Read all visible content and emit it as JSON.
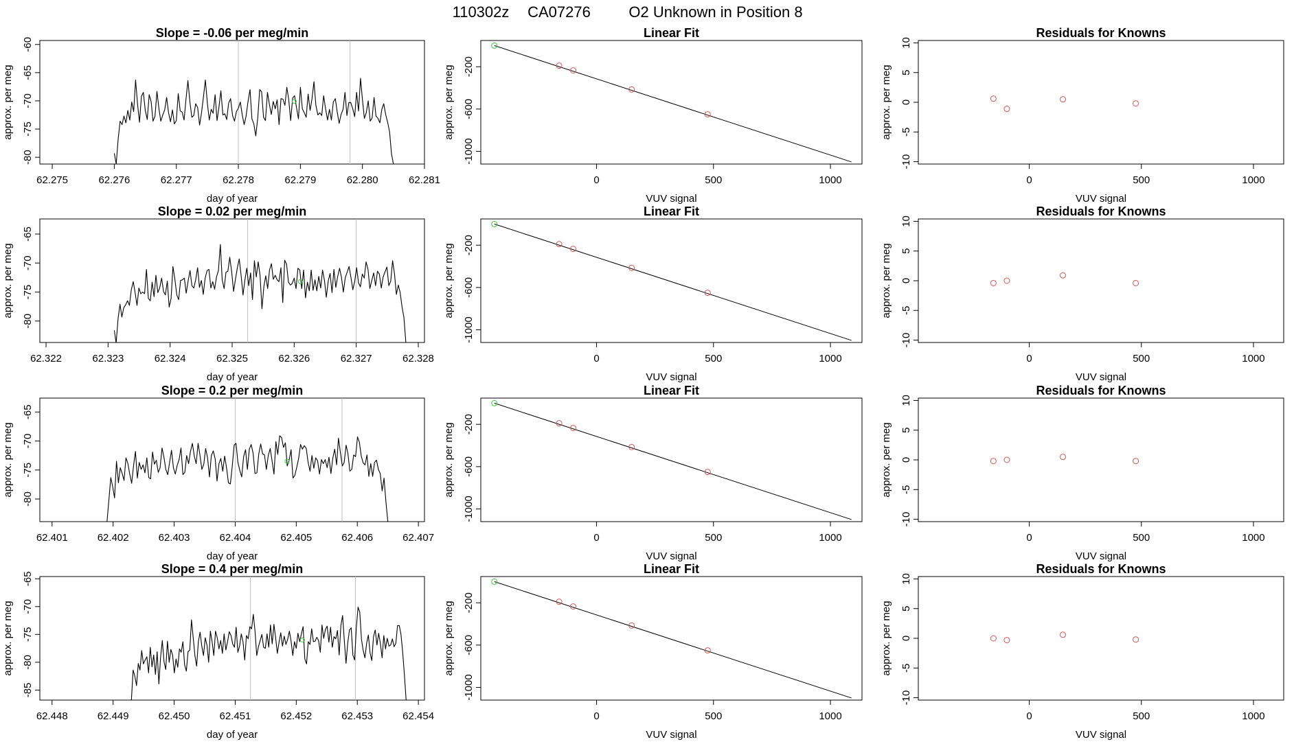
{
  "figure": {
    "title_parts": [
      "110302z",
      "CA07276",
      "O2 Unknown in Position  8"
    ]
  },
  "colors": {
    "axis": "#000000",
    "line": "#000000",
    "grid_marker": "#bebebe",
    "known_point": "#d9534f",
    "unknown_point": "#33cc33"
  },
  "chart_data": [
    {
      "type": "line",
      "panel": "trace",
      "row": 1,
      "title": "Slope =  -0.06  per meg/min",
      "xlabel": "day of year",
      "ylabel": "approx. per meg",
      "xlim": [
        62.2748,
        62.281
      ],
      "ylim": [
        -81.2,
        -59.3
      ],
      "xticks": [
        "62.275",
        "62.276",
        "62.277",
        "62.278",
        "62.279",
        "62.280",
        "62.281"
      ],
      "yticks": [
        "-60",
        "-65",
        "-70",
        "-75",
        "-80"
      ],
      "vlines": [
        62.278,
        62.2798
      ],
      "start_x": 62.276,
      "end_x": 62.2805,
      "y": [
        -79.3,
        -81.2,
        -76.8,
        -73.6,
        -74.2,
        -72.7,
        -73.9,
        -71.7,
        -73.4,
        -70.2,
        -71.9,
        -66.3,
        -70.6,
        -73.8,
        -69.2,
        -68.5,
        -71.7,
        -73.3,
        -68.9,
        -70.1,
        -73.6,
        -72.7,
        -68.3,
        -71.3,
        -73.6,
        -72.5,
        -71.6,
        -69.4,
        -72.1,
        -73.7,
        -71.6,
        -74.1,
        -73.5,
        -68.7,
        -71.8,
        -72.0,
        -73.4,
        -69.7,
        -66.4,
        -70.2,
        -72.9,
        -72.6,
        -70.5,
        -71.2,
        -74.3,
        -72.1,
        -69.3,
        -66.3,
        -70.4,
        -73.4,
        -71.5,
        -72.2,
        -68.9,
        -73.5,
        -71.1,
        -68.2,
        -72.5,
        -72.3,
        -73.3,
        -70.4,
        -69.6,
        -72.6,
        -73.6,
        -71.9,
        -71.3,
        -70.2,
        -72.5,
        -74.2,
        -72.7,
        -70.1,
        -68.0,
        -73.2,
        -74.1,
        -76.2,
        -73.0,
        -68.0,
        -68.4,
        -72.9,
        -73.5,
        -68.5,
        -70.6,
        -72.4,
        -70.1,
        -71.4,
        -69.8,
        -74.2,
        -69.6,
        -69.7,
        -70.8,
        -67.6,
        -69.8,
        -73.5,
        -69.5,
        -69.1,
        -71.2,
        -73.2,
        -67.6,
        -71.4,
        -72.1,
        -72.9,
        -68.8,
        -71.7,
        -69.6,
        -66.6,
        -70.8,
        -72.5,
        -72.1,
        -72.6,
        -69.1,
        -71.4,
        -73.4,
        -71.5,
        -73.4,
        -70.2,
        -69.6,
        -72.0,
        -74.0,
        -72.4,
        -71.5,
        -68.5,
        -72.6,
        -70.3,
        -70.3,
        -71.4,
        -72.8,
        -68.5,
        -71.8,
        -66.0,
        -69.8,
        -73.1,
        -72.1,
        -70.0,
        -73.6,
        -73.0,
        -69.4,
        -72.7,
        -73.1,
        -73.9,
        -71.5,
        -70.5,
        -72.4,
        -73.8,
        -75.5,
        -79.4,
        -81.2
      ],
      "unknown_point": [
        62.2789,
        -70.1
      ]
    },
    {
      "type": "scatter",
      "panel": "fit",
      "row": 1,
      "title": "Linear Fit",
      "xlabel": "VUV signal",
      "ylabel": "approx. per meg",
      "xlim": [
        -495,
        1135
      ],
      "ylim": [
        -1120,
        48
      ],
      "xticks": [
        0,
        500,
        1000
      ],
      "yticks": [
        -200,
        -600,
        -1000
      ],
      "fit_line": [
        [
          -437,
          0
        ],
        [
          1090,
          -1100
        ]
      ],
      "known_points": [
        [
          -160,
          -190
        ],
        [
          -100,
          -235
        ],
        [
          150,
          -415
        ],
        [
          475,
          -650
        ]
      ],
      "unknown_point": [
        -437,
        0
      ]
    },
    {
      "type": "scatter",
      "panel": "residuals",
      "row": 1,
      "title": "Residuals for Knowns",
      "xlabel": "VUV signal",
      "ylabel": "approx. per meg",
      "xlim": [
        -495,
        1135
      ],
      "ylim": [
        -10.4,
        10.4
      ],
      "xticks": [
        0,
        500,
        1000
      ],
      "yticks": [
        10,
        5,
        0,
        -5,
        -10
      ],
      "points": [
        [
          -160,
          0.6
        ],
        [
          -100,
          -1.1
        ],
        [
          150,
          0.5
        ],
        [
          475,
          -0.2
        ]
      ]
    },
    {
      "type": "line",
      "panel": "trace",
      "row": 2,
      "title": "Slope =  0.02  per meg/min",
      "xlabel": "day of year",
      "ylabel": "approx. per meg",
      "xlim": [
        62.3219,
        62.3281
      ],
      "ylim": [
        -83.7,
        -62.4
      ],
      "xticks": [
        "62.322",
        "62.323",
        "62.324",
        "62.325",
        "62.326",
        "62.327",
        "62.328"
      ],
      "yticks": [
        "-65",
        "-70",
        "-75",
        "-80"
      ],
      "vlines": [
        62.32525,
        62.327
      ],
      "start_x": 62.3231,
      "end_x": 62.3278,
      "y": [
        -81.6,
        -83.8,
        -79.6,
        -77.1,
        -79.3,
        -77.7,
        -77.2,
        -76.5,
        -77.3,
        -74.6,
        -73.2,
        -75.1,
        -77.3,
        -74.3,
        -75.3,
        -75.0,
        -75.3,
        -71.1,
        -76.1,
        -76.5,
        -73.3,
        -75.8,
        -72.1,
        -75.1,
        -74.3,
        -72.6,
        -74.9,
        -75.5,
        -73.1,
        -77.6,
        -76.1,
        -70.6,
        -72.8,
        -75.5,
        -76.3,
        -73.0,
        -72.9,
        -72.6,
        -75.2,
        -73.1,
        -71.3,
        -73.9,
        -74.3,
        -72.9,
        -70.8,
        -74.2,
        -73.0,
        -75.4,
        -72.6,
        -71.3,
        -71.1,
        -74.3,
        -73.2,
        -74.5,
        -72.4,
        -71.3,
        -66.8,
        -72.9,
        -74.4,
        -71.6,
        -71.4,
        -69.0,
        -71.5,
        -74.9,
        -72.8,
        -70.8,
        -69.3,
        -72.2,
        -75.5,
        -72.9,
        -70.9,
        -73.9,
        -71.7,
        -76.3,
        -69.6,
        -72.4,
        -69.8,
        -72.1,
        -77.9,
        -74.0,
        -72.2,
        -74.4,
        -71.2,
        -70.1,
        -72.8,
        -72.1,
        -72.9,
        -73.2,
        -70.8,
        -76.8,
        -69.5,
        -70.2,
        -73.3,
        -73.8,
        -73.5,
        -72.6,
        -74.4,
        -70.9,
        -71.2,
        -74.4,
        -71.2,
        -76.0,
        -73.3,
        -74.8,
        -71.2,
        -74.7,
        -72.9,
        -74.8,
        -72.3,
        -74.3,
        -71.2,
        -73.0,
        -75.9,
        -73.1,
        -71.8,
        -75.1,
        -71.1,
        -74.2,
        -72.3,
        -70.9,
        -72.5,
        -75.0,
        -72.5,
        -71.6,
        -70.6,
        -72.5,
        -74.6,
        -73.1,
        -70.8,
        -73.4,
        -74.1,
        -71.9,
        -72.6,
        -69.8,
        -71.1,
        -74.4,
        -73.0,
        -71.7,
        -73.9,
        -71.4,
        -71.9,
        -74.3,
        -72.4,
        -71.5,
        -70.7,
        -73.9,
        -73.1,
        -69.6,
        -71.9,
        -75.4,
        -73.8,
        -75.1,
        -77.6,
        -79.4,
        -83.7
      ],
      "unknown_point": [
        62.3261,
        -73.2
      ]
    },
    {
      "type": "scatter",
      "panel": "fit",
      "row": 2,
      "title": "Linear Fit",
      "xlabel": "VUV signal",
      "ylabel": "approx. per meg",
      "xlim": [
        -495,
        1135
      ],
      "ylim": [
        -1120,
        48
      ],
      "xticks": [
        0,
        500,
        1000
      ],
      "yticks": [
        -200,
        -600,
        -1000
      ],
      "fit_line": [
        [
          -437,
          0
        ],
        [
          1090,
          -1100
        ]
      ],
      "known_points": [
        [
          -160,
          -190
        ],
        [
          -100,
          -235
        ],
        [
          150,
          -415
        ],
        [
          475,
          -650
        ]
      ],
      "unknown_point": [
        -437,
        0
      ]
    },
    {
      "type": "scatter",
      "panel": "residuals",
      "row": 2,
      "title": "Residuals for Knowns",
      "xlabel": "VUV signal",
      "ylabel": "approx. per meg",
      "xlim": [
        -495,
        1135
      ],
      "ylim": [
        -10.4,
        10.4
      ],
      "xticks": [
        0,
        500,
        1000
      ],
      "yticks": [
        10,
        5,
        0,
        -5,
        -10
      ],
      "points": [
        [
          -160,
          -0.4
        ],
        [
          -100,
          0.0
        ],
        [
          150,
          0.9
        ],
        [
          475,
          -0.4
        ]
      ]
    },
    {
      "type": "line",
      "panel": "trace",
      "row": 3,
      "title": "Slope =  0.2  per meg/min",
      "xlabel": "day of year",
      "ylabel": "approx. per meg",
      "xlim": [
        62.4008,
        62.4071
      ],
      "ylim": [
        -83.9,
        -62.6
      ],
      "xticks": [
        "62.401",
        "62.402",
        "62.403",
        "62.404",
        "62.405",
        "62.406",
        "62.407"
      ],
      "yticks": [
        "-65",
        "-70",
        "-75",
        "-80"
      ],
      "vlines": [
        62.404,
        62.40575
      ],
      "start_x": 62.4019,
      "end_x": 62.4065,
      "y": [
        -83.9,
        -80.2,
        -76.3,
        -77.9,
        -79.8,
        -73.5,
        -77.2,
        -74.6,
        -75.6,
        -76.8,
        -72.9,
        -73.9,
        -75.7,
        -77.3,
        -74.2,
        -71.8,
        -76.4,
        -73.7,
        -74.9,
        -74.1,
        -75.5,
        -72.9,
        -76.3,
        -76.5,
        -71.9,
        -74.0,
        -73.3,
        -75.4,
        -74.6,
        -71.2,
        -72.8,
        -74.9,
        -75.8,
        -73.7,
        -71.6,
        -74.6,
        -75.7,
        -74.2,
        -73.2,
        -71.2,
        -75.8,
        -75.4,
        -72.5,
        -73.9,
        -71.8,
        -70.4,
        -72.6,
        -73.9,
        -70.4,
        -72.5,
        -74.9,
        -74.0,
        -71.3,
        -72.9,
        -76.2,
        -72.5,
        -71.7,
        -73.1,
        -76.9,
        -73.9,
        -73.0,
        -75.2,
        -72.6,
        -74.6,
        -77.2,
        -77.4,
        -74.4,
        -70.7,
        -70.4,
        -73.7,
        -75.1,
        -76.2,
        -72.7,
        -71.5,
        -74.9,
        -71.4,
        -70.6,
        -72.1,
        -75.6,
        -75.5,
        -72.2,
        -70.5,
        -72.2,
        -72.4,
        -74.9,
        -72.5,
        -71.3,
        -73.4,
        -75.7,
        -70.1,
        -72.3,
        -69.1,
        -69.4,
        -71.1,
        -70.3,
        -74.3,
        -73.3,
        -71.5,
        -76.4,
        -75.9,
        -74.5,
        -73.0,
        -70.6,
        -71.4,
        -70.8,
        -71.3,
        -73.7,
        -75.2,
        -72.5,
        -74.7,
        -72.9,
        -73.4,
        -75.7,
        -73.2,
        -73.9,
        -73.2,
        -74.6,
        -72.8,
        -75.6,
        -73.0,
        -71.4,
        -74.1,
        -69.5,
        -72.0,
        -74.3,
        -73.7,
        -70.7,
        -72.2,
        -75.2,
        -74.9,
        -72.4,
        -72.7,
        -69.3,
        -70.2,
        -72.6,
        -73.8,
        -74.1,
        -72.4,
        -76.1,
        -73.9,
        -76.1,
        -73.7,
        -73.3,
        -74.9,
        -75.6,
        -78.6,
        -76.4,
        -80.5,
        -83.9
      ],
      "unknown_point": [
        62.40485,
        -73.5
      ]
    },
    {
      "type": "scatter",
      "panel": "fit",
      "row": 3,
      "title": "Linear Fit",
      "xlabel": "VUV signal",
      "ylabel": "approx. per meg",
      "xlim": [
        -495,
        1135
      ],
      "ylim": [
        -1120,
        48
      ],
      "xticks": [
        0,
        500,
        1000
      ],
      "yticks": [
        -200,
        -600,
        -1000
      ],
      "fit_line": [
        [
          -437,
          0
        ],
        [
          1090,
          -1100
        ]
      ],
      "known_points": [
        [
          -160,
          -190
        ],
        [
          -100,
          -235
        ],
        [
          150,
          -415
        ],
        [
          475,
          -650
        ]
      ],
      "unknown_point": [
        -437,
        0
      ]
    },
    {
      "type": "scatter",
      "panel": "residuals",
      "row": 3,
      "title": "Residuals for Knowns",
      "xlabel": "VUV signal",
      "ylabel": "approx. per meg",
      "xlim": [
        -495,
        1135
      ],
      "ylim": [
        -10.4,
        10.4
      ],
      "xticks": [
        0,
        500,
        1000
      ],
      "yticks": [
        10,
        5,
        0,
        -5,
        -10
      ],
      "points": [
        [
          -160,
          -0.2
        ],
        [
          -100,
          0.0
        ],
        [
          150,
          0.5
        ],
        [
          475,
          -0.2
        ]
      ]
    },
    {
      "type": "line",
      "panel": "trace",
      "row": 4,
      "title": "Slope =  0.4  per meg/min",
      "xlabel": "day of year",
      "ylabel": "approx. per meg",
      "xlim": [
        62.4478,
        62.4541
      ],
      "ylim": [
        -86.8,
        -64.6
      ],
      "xticks": [
        "62.448",
        "62.449",
        "62.450",
        "62.451",
        "62.452",
        "62.453",
        "62.454"
      ],
      "yticks": [
        "-65",
        "-70",
        "-75",
        "-80",
        "-85"
      ],
      "vlines": [
        62.45125,
        62.45297
      ],
      "start_x": 62.4493,
      "end_x": 62.4538,
      "y": [
        -86.8,
        -81.4,
        -82.5,
        -84.2,
        -80.2,
        -81.4,
        -77.9,
        -80.3,
        -79.6,
        -79.0,
        -81.9,
        -77.3,
        -80.8,
        -78.7,
        -82.2,
        -78.1,
        -83.9,
        -79.1,
        -76.1,
        -79.9,
        -81.3,
        -76.2,
        -80.0,
        -77.7,
        -78.7,
        -81.9,
        -79.4,
        -80.9,
        -77.6,
        -78.2,
        -76.3,
        -80.5,
        -81.6,
        -78.1,
        -77.8,
        -72.4,
        -75.6,
        -78.8,
        -80.7,
        -76.3,
        -74.6,
        -77.1,
        -78.8,
        -75.6,
        -76.9,
        -80.0,
        -74.4,
        -76.3,
        -78.8,
        -74.4,
        -75.6,
        -77.6,
        -76.1,
        -78.4,
        -74.9,
        -77.8,
        -76.3,
        -74.5,
        -75.2,
        -76.7,
        -77.3,
        -73.7,
        -78.2,
        -77.1,
        -74.9,
        -76.3,
        -79.6,
        -75.2,
        -75.8,
        -73.6,
        -74.0,
        -71.4,
        -74.4,
        -78.8,
        -77.2,
        -76.1,
        -75.0,
        -77.3,
        -77.5,
        -74.9,
        -77.3,
        -73.3,
        -76.7,
        -73.2,
        -75.6,
        -78.4,
        -76.4,
        -74.7,
        -77.1,
        -75.3,
        -76.8,
        -75.9,
        -74.4,
        -76.2,
        -78.8,
        -76.3,
        -77.5,
        -74.8,
        -76.3,
        -74.9,
        -73.6,
        -79.4,
        -80.3,
        -76.3,
        -76.8,
        -74.0,
        -76.3,
        -76.2,
        -75.5,
        -76.1,
        -78.2,
        -73.3,
        -75.7,
        -74.1,
        -73.5,
        -76.4,
        -73.7,
        -77.3,
        -75.4,
        -75.8,
        -74.3,
        -78.7,
        -73.4,
        -71.6,
        -76.1,
        -80.2,
        -76.5,
        -74.2,
        -73.8,
        -78.7,
        -79.6,
        -73.8,
        -70.1,
        -71.0,
        -75.9,
        -77.9,
        -79.2,
        -76.6,
        -75.1,
        -78.3,
        -79.7,
        -75.4,
        -74.2,
        -76.9,
        -74.8,
        -76.6,
        -79.2,
        -75.2,
        -77.6,
        -75.7,
        -77.1,
        -76.9,
        -75.8,
        -77.2,
        -76.6,
        -73.4,
        -73.4,
        -75.0,
        -78.2,
        -82.3,
        -86.8
      ],
      "unknown_point": [
        62.4521,
        -76.0
      ]
    },
    {
      "type": "scatter",
      "panel": "fit",
      "row": 4,
      "title": "Linear Fit",
      "xlabel": "VUV signal",
      "ylabel": "approx. per meg",
      "xlim": [
        -495,
        1135
      ],
      "ylim": [
        -1120,
        48
      ],
      "xticks": [
        0,
        500,
        1000
      ],
      "yticks": [
        -200,
        -600,
        -1000
      ],
      "fit_line": [
        [
          -437,
          0
        ],
        [
          1090,
          -1100
        ]
      ],
      "known_points": [
        [
          -160,
          -190
        ],
        [
          -100,
          -235
        ],
        [
          150,
          -415
        ],
        [
          475,
          -650
        ]
      ],
      "unknown_point": [
        -437,
        0
      ]
    },
    {
      "type": "scatter",
      "panel": "residuals",
      "row": 4,
      "title": "Residuals for Knowns",
      "xlabel": "VUV signal",
      "ylabel": "approx. per meg",
      "xlim": [
        -495,
        1135
      ],
      "ylim": [
        -10.4,
        10.4
      ],
      "xticks": [
        0,
        500,
        1000
      ],
      "yticks": [
        10,
        5,
        0,
        -5,
        -10
      ],
      "points": [
        [
          -160,
          0.0
        ],
        [
          -100,
          -0.3
        ],
        [
          150,
          0.6
        ],
        [
          475,
          -0.2
        ]
      ]
    }
  ]
}
